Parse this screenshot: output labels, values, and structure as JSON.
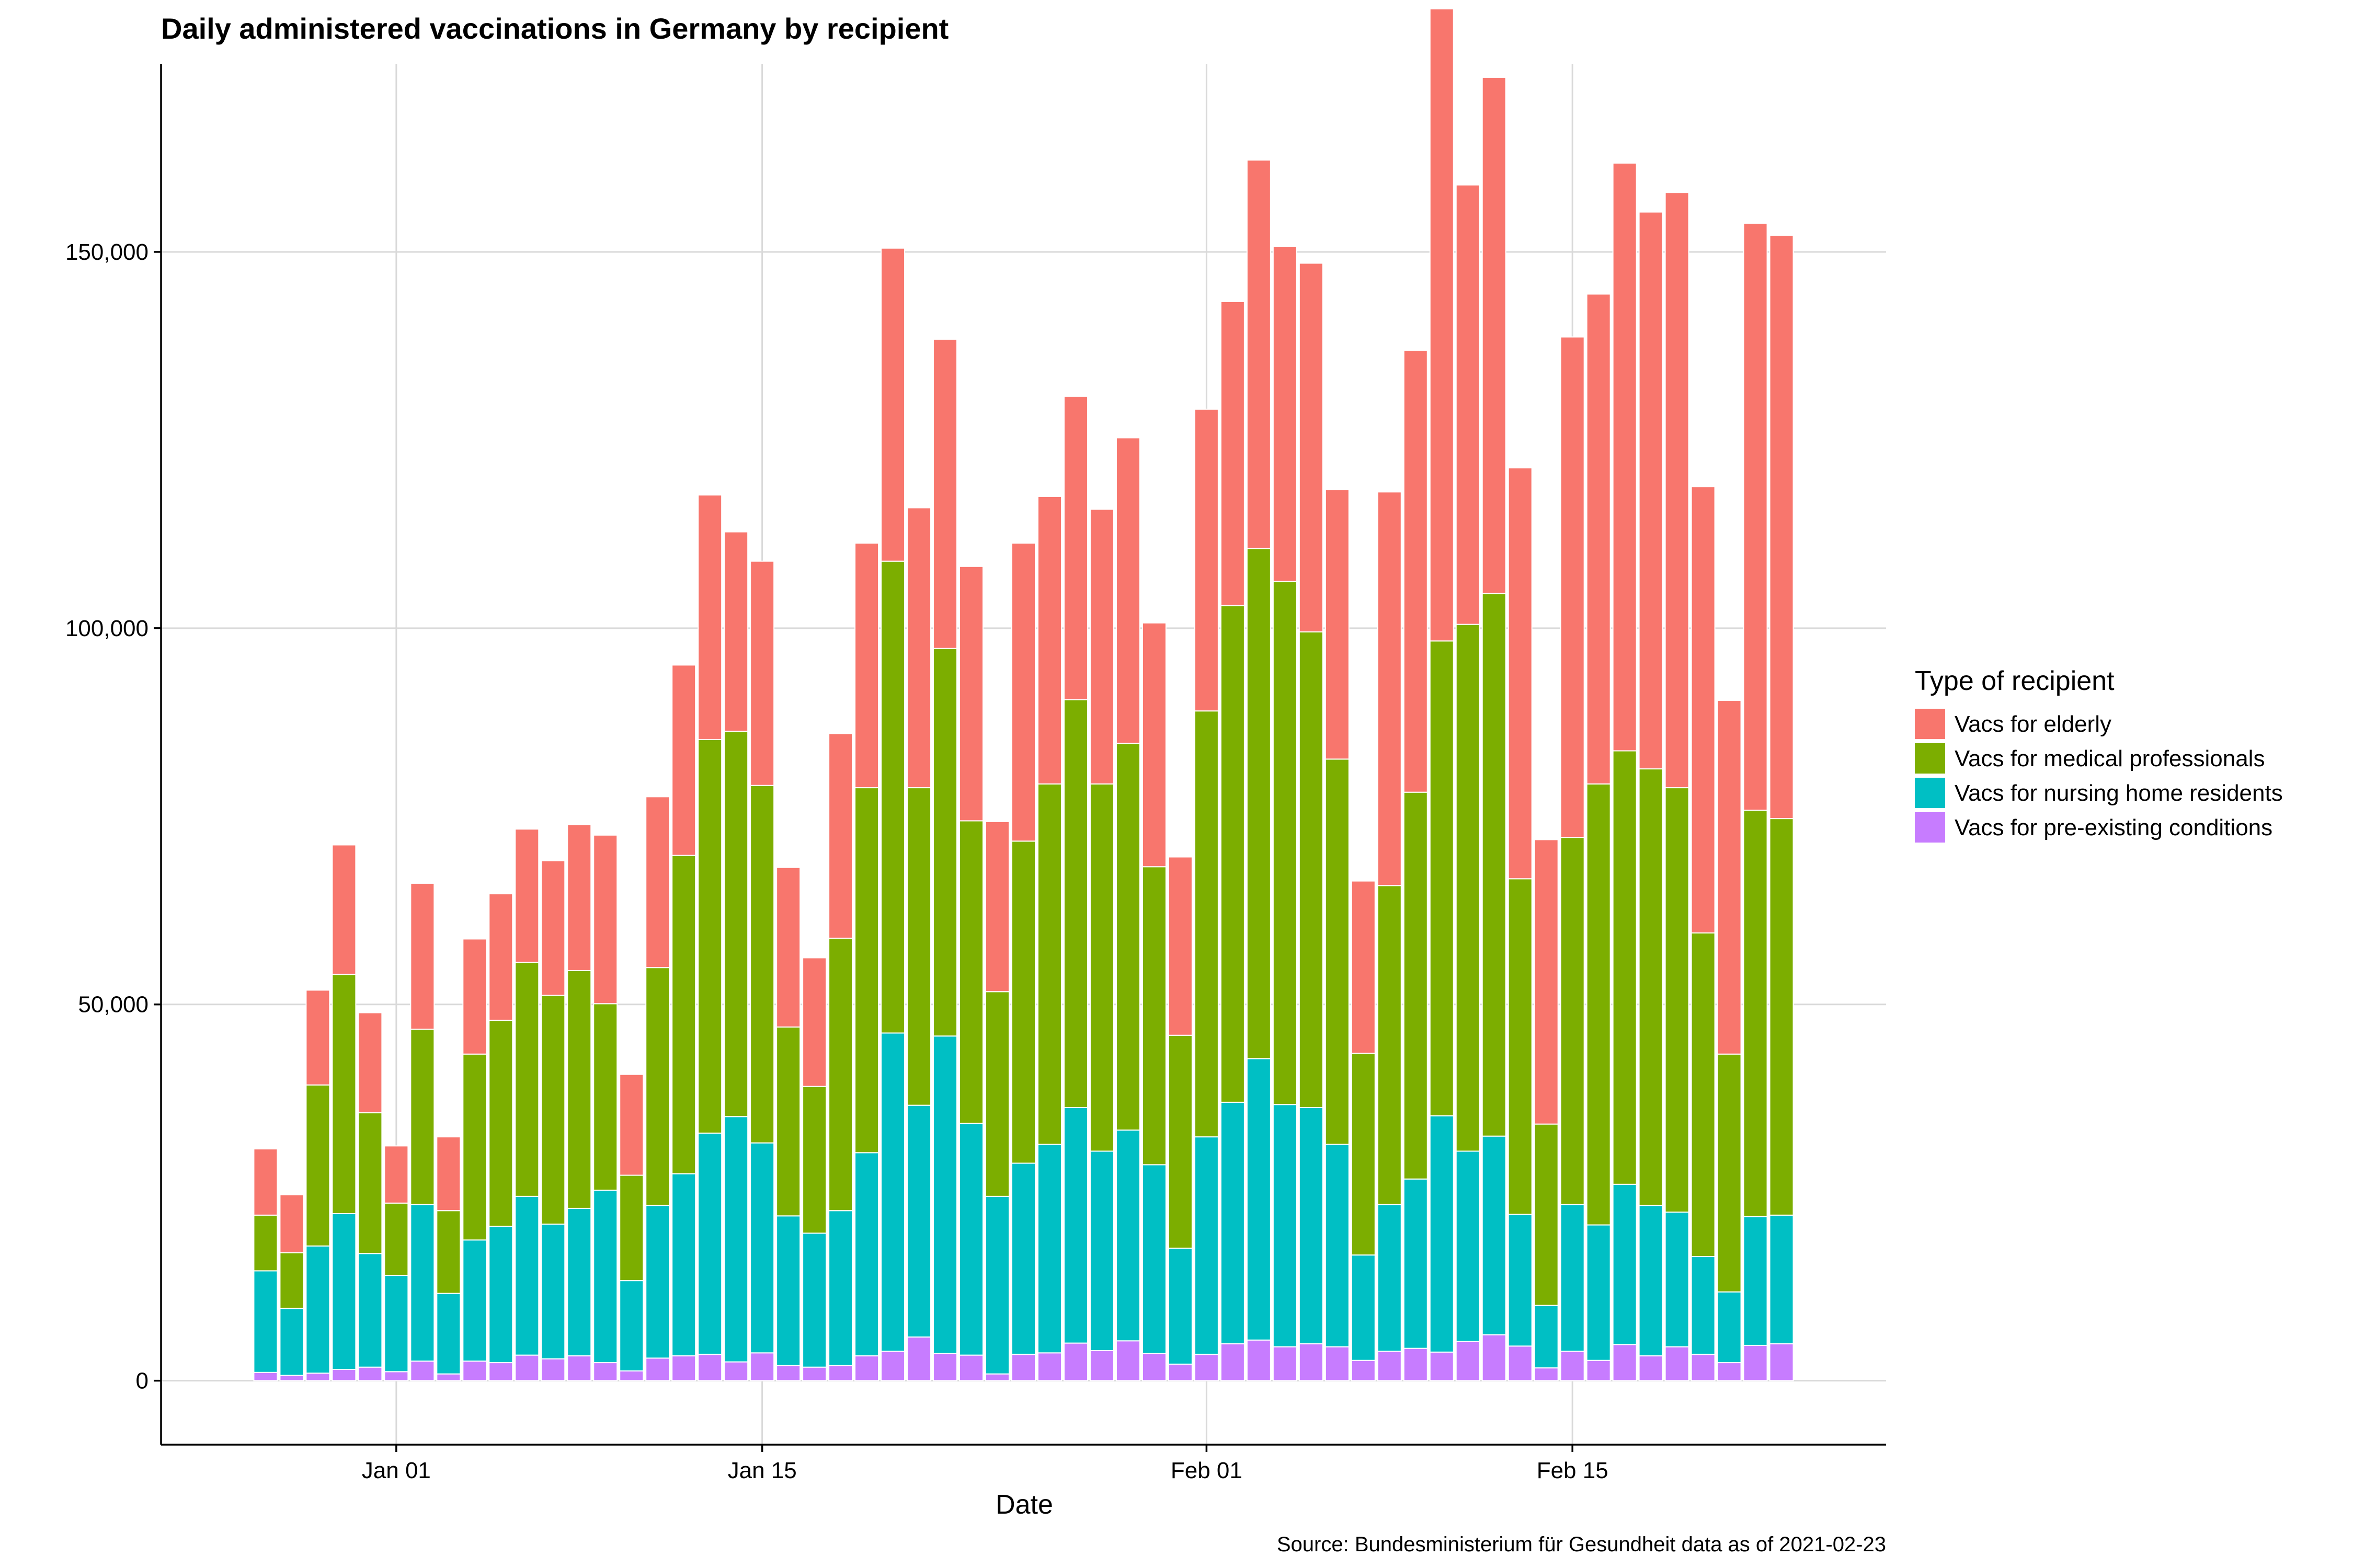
{
  "chart_data": {
    "type": "bar",
    "stacked": true,
    "title": "Daily administered vaccinations in Germany by recipient",
    "xlabel": "Date",
    "ylabel": "",
    "caption": "Source: Bundesministerium für Gesundheit data as of 2021-02-23",
    "legend_title": "Type of recipient",
    "legend_position": "right",
    "grid": true,
    "ylim": [
      -8500,
      175000
    ],
    "y_ticks": [
      {
        "value": 0,
        "label": "0"
      },
      {
        "value": 50000,
        "label": "50,000"
      },
      {
        "value": 100000,
        "label": "100,000"
      },
      {
        "value": 150000,
        "label": "150,000"
      }
    ],
    "x_ticks": [
      {
        "date": "2021-01-01",
        "label": "Jan 01"
      },
      {
        "date": "2021-01-15",
        "label": "Jan 15"
      },
      {
        "date": "2021-02-01",
        "label": "Feb 01"
      },
      {
        "date": "2021-02-15",
        "label": "Feb 15"
      }
    ],
    "x_range": [
      "2020-12-23",
      "2021-02-27"
    ],
    "categories": [
      "2020-12-27",
      "2020-12-28",
      "2020-12-29",
      "2020-12-30",
      "2020-12-31",
      "2021-01-01",
      "2021-01-02",
      "2021-01-03",
      "2021-01-04",
      "2021-01-05",
      "2021-01-06",
      "2021-01-07",
      "2021-01-08",
      "2021-01-09",
      "2021-01-10",
      "2021-01-11",
      "2021-01-12",
      "2021-01-13",
      "2021-01-14",
      "2021-01-15",
      "2021-01-16",
      "2021-01-17",
      "2021-01-18",
      "2021-01-19",
      "2021-01-20",
      "2021-01-21",
      "2021-01-22",
      "2021-01-23",
      "2021-01-24",
      "2021-01-25",
      "2021-01-26",
      "2021-01-27",
      "2021-01-28",
      "2021-01-29",
      "2021-01-30",
      "2021-01-31",
      "2021-02-01",
      "2021-02-02",
      "2021-02-03",
      "2021-02-04",
      "2021-02-05",
      "2021-02-06",
      "2021-02-07",
      "2021-02-08",
      "2021-02-09",
      "2021-02-10",
      "2021-02-11",
      "2021-02-12",
      "2021-02-13",
      "2021-02-14",
      "2021-02-15",
      "2021-02-16",
      "2021-02-17",
      "2021-02-18",
      "2021-02-19",
      "2021-02-20",
      "2021-02-21",
      "2021-02-22",
      "2021-02-23"
    ],
    "series": [
      {
        "name": "Vacs for pre-existing conditions",
        "color": "#C77CFF",
        "values": [
          1100,
          700,
          1000,
          1500,
          1800,
          1200,
          2600,
          900,
          2600,
          2400,
          3400,
          2900,
          3300,
          2400,
          1300,
          3000,
          3300,
          3500,
          2500,
          3700,
          2000,
          1800,
          2000,
          3300,
          3900,
          5800,
          3600,
          3400,
          900,
          3500,
          3700,
          5000,
          4000,
          5300,
          3600,
          2200,
          3500,
          4900,
          5400,
          4500,
          4900,
          4500,
          2700,
          3900,
          4300,
          3800,
          5200,
          6100,
          4600,
          1700,
          3900,
          2700,
          4800,
          3300,
          4500,
          3500,
          2400,
          4700,
          4900
        ]
      },
      {
        "name": "Vacs for nursing home residents",
        "color": "#00BFC4",
        "values": [
          13500,
          8900,
          16900,
          20700,
          15100,
          12800,
          20800,
          10700,
          16100,
          18100,
          21100,
          17900,
          19600,
          22900,
          12000,
          20300,
          24200,
          29400,
          32600,
          27900,
          19900,
          17800,
          20600,
          27000,
          42300,
          30800,
          42200,
          30800,
          23600,
          25400,
          27700,
          31300,
          26500,
          28000,
          25100,
          15400,
          28900,
          32100,
          37400,
          32200,
          31400,
          26900,
          14000,
          19500,
          22500,
          31400,
          25300,
          26400,
          17500,
          8300,
          19500,
          18000,
          21300,
          20000,
          17900,
          13000,
          9400,
          17100,
          17100
        ]
      },
      {
        "name": "Vacs for medical professionals",
        "color": "#7CAE00",
        "values": [
          7400,
          7400,
          21400,
          31800,
          18700,
          9600,
          23300,
          11000,
          24700,
          27400,
          31100,
          30400,
          31600,
          24800,
          14000,
          31600,
          42300,
          52300,
          51200,
          47500,
          25100,
          19500,
          36200,
          48500,
          62700,
          42200,
          51500,
          40200,
          27200,
          42800,
          47900,
          54200,
          48800,
          51400,
          39600,
          28300,
          56600,
          66000,
          67800,
          69500,
          63200,
          51200,
          26800,
          42400,
          51400,
          63100,
          70000,
          72100,
          44600,
          24100,
          48800,
          58600,
          57600,
          58000,
          56400,
          43000,
          31600,
          54000,
          52700
        ]
      },
      {
        "name": "Vacs for elderly",
        "color": "#F8766D",
        "values": [
          8800,
          7700,
          12600,
          17200,
          13300,
          7600,
          19400,
          9800,
          15300,
          16800,
          17700,
          17900,
          19400,
          22400,
          13400,
          22700,
          25300,
          32500,
          26500,
          29800,
          21200,
          17100,
          27200,
          32500,
          41600,
          37200,
          41100,
          33800,
          22600,
          39600,
          38200,
          40300,
          36500,
          40600,
          32400,
          23700,
          40100,
          40400,
          51600,
          44500,
          49000,
          35800,
          22900,
          52300,
          58700,
          84000,
          58400,
          68600,
          54600,
          37800,
          66500,
          65100,
          78100,
          74000,
          79100,
          59300,
          47000,
          78000,
          77500
        ]
      }
    ]
  }
}
